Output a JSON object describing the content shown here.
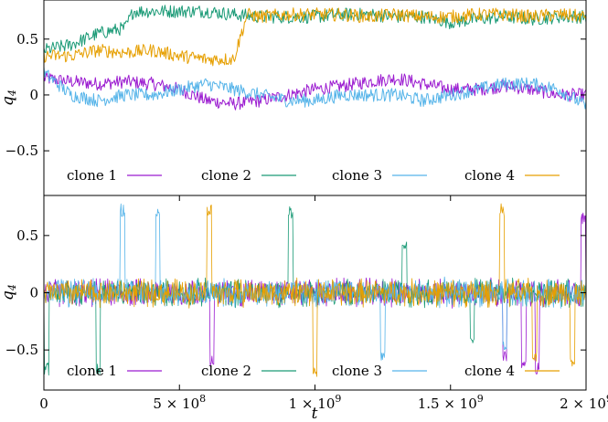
{
  "chart_data": [
    {
      "type": "line",
      "panel": "top",
      "ylabel": "q4",
      "xlim": [
        0,
        2000000000
      ],
      "ylim": [
        -0.9,
        0.85
      ],
      "yticks": [
        {
          "value": 0.5,
          "label": "0.5"
        },
        {
          "value": 0,
          "label": "0"
        },
        {
          "value": -0.5,
          "label": "−0.5"
        }
      ],
      "legend_position": "bottom",
      "series": [
        {
          "name": "clone 1",
          "color": "#9b1bd0",
          "x": [
            0,
            100000000,
            200000000,
            300000000,
            400000000,
            500000000,
            600000000,
            700000000,
            800000000,
            900000000,
            1000000000,
            1100000000,
            1200000000,
            1300000000,
            1400000000,
            1500000000,
            1600000000,
            1700000000,
            1800000000,
            1900000000,
            2000000000
          ],
          "y": [
            0.15,
            0.12,
            0.1,
            0.12,
            0.1,
            0.05,
            -0.05,
            -0.08,
            -0.05,
            0.0,
            0.05,
            0.08,
            0.12,
            0.15,
            0.1,
            0.05,
            0.05,
            0.08,
            0.05,
            0.0,
            0.0
          ]
        },
        {
          "name": "clone 2",
          "color": "#1a9a76",
          "x": [
            0,
            100000000,
            200000000,
            300000000,
            330000000,
            400000000,
            500000000,
            600000000,
            700000000,
            800000000,
            900000000,
            1000000000,
            1100000000,
            1200000000,
            1300000000,
            1400000000,
            1500000000,
            1600000000,
            1700000000,
            1800000000,
            1900000000,
            2000000000
          ],
          "y": [
            0.4,
            0.45,
            0.55,
            0.6,
            0.75,
            0.75,
            0.75,
            0.75,
            0.72,
            0.7,
            0.7,
            0.7,
            0.72,
            0.72,
            0.7,
            0.7,
            0.65,
            0.68,
            0.7,
            0.68,
            0.7,
            0.7
          ]
        },
        {
          "name": "clone 3",
          "color": "#56b4e9",
          "x": [
            0,
            100000000,
            200000000,
            300000000,
            400000000,
            500000000,
            600000000,
            700000000,
            800000000,
            900000000,
            1000000000,
            1100000000,
            1200000000,
            1300000000,
            1400000000,
            1500000000,
            1600000000,
            1700000000,
            1800000000,
            1900000000,
            2000000000
          ],
          "y": [
            0.2,
            0.0,
            -0.05,
            0.0,
            0.0,
            0.05,
            0.1,
            0.05,
            0.0,
            -0.05,
            -0.05,
            0.0,
            0.0,
            0.0,
            -0.05,
            0.0,
            0.05,
            0.1,
            0.1,
            0.05,
            -0.1
          ]
        },
        {
          "name": "clone 4",
          "color": "#e69f00",
          "x": [
            0,
            100000000,
            200000000,
            300000000,
            400000000,
            500000000,
            600000000,
            700000000,
            750000000,
            800000000,
            900000000,
            1000000000,
            1100000000,
            1200000000,
            1300000000,
            1400000000,
            1500000000,
            1600000000,
            1700000000,
            1800000000,
            1900000000,
            2000000000
          ],
          "y": [
            0.35,
            0.35,
            0.4,
            0.38,
            0.4,
            0.35,
            0.32,
            0.32,
            0.72,
            0.7,
            0.72,
            0.72,
            0.72,
            0.7,
            0.72,
            0.7,
            0.7,
            0.72,
            0.72,
            0.7,
            0.72,
            0.7
          ]
        }
      ],
      "legend": [
        "clone 1",
        "clone 2",
        "clone 3",
        "clone 4"
      ]
    },
    {
      "type": "line",
      "panel": "bottom",
      "ylabel": "q4",
      "xlabel": "t",
      "xlim": [
        0,
        2000000000
      ],
      "ylim": [
        -0.85,
        0.85
      ],
      "yticks": [
        {
          "value": 0.5,
          "label": "0.5"
        },
        {
          "value": 0,
          "label": "0"
        },
        {
          "value": -0.5,
          "label": "−0.5"
        }
      ],
      "xticks": [
        {
          "value": 0,
          "label": "0",
          "exp": ""
        },
        {
          "value": 500000000,
          "label": "5 × 10",
          "exp": "8"
        },
        {
          "value": 1000000000,
          "label": "1 × 10",
          "exp": "9"
        },
        {
          "value": 1500000000,
          "label": "1.5 × 10",
          "exp": "9"
        },
        {
          "value": 2000000000,
          "label": "2 × 10",
          "exp": "9"
        }
      ],
      "legend_position": "bottom",
      "noise_amplitude": 0.1,
      "series": [
        {
          "name": "clone 1",
          "color": "#9b1bd0",
          "spikes": [
            {
              "x": 620000000,
              "y": -0.65
            },
            {
              "x": 1700000000,
              "y": -0.6
            },
            {
              "x": 1770000000,
              "y": -0.7
            },
            {
              "x": 1820000000,
              "y": -0.72
            },
            {
              "x": 1990000000,
              "y": 0.7
            }
          ]
        },
        {
          "name": "clone 2",
          "color": "#1a9a76",
          "spikes": [
            {
              "x": 10000000,
              "y": -0.72
            },
            {
              "x": 200000000,
              "y": -0.72
            },
            {
              "x": 910000000,
              "y": 0.76
            },
            {
              "x": 1330000000,
              "y": 0.45
            },
            {
              "x": 1580000000,
              "y": -0.45
            }
          ]
        },
        {
          "name": "clone 3",
          "color": "#56b4e9",
          "spikes": [
            {
              "x": 290000000,
              "y": 0.78
            },
            {
              "x": 420000000,
              "y": 0.75
            },
            {
              "x": 1250000000,
              "y": -0.6
            },
            {
              "x": 1700000000,
              "y": -0.5
            }
          ]
        },
        {
          "name": "clone 4",
          "color": "#e69f00",
          "spikes": [
            {
              "x": 610000000,
              "y": 0.78
            },
            {
              "x": 1000000000,
              "y": -0.75
            },
            {
              "x": 1690000000,
              "y": 0.78
            },
            {
              "x": 1810000000,
              "y": -0.6
            },
            {
              "x": 1950000000,
              "y": -0.65
            }
          ]
        }
      ],
      "legend": [
        "clone 1",
        "clone 2",
        "clone 3",
        "clone 4"
      ]
    }
  ]
}
